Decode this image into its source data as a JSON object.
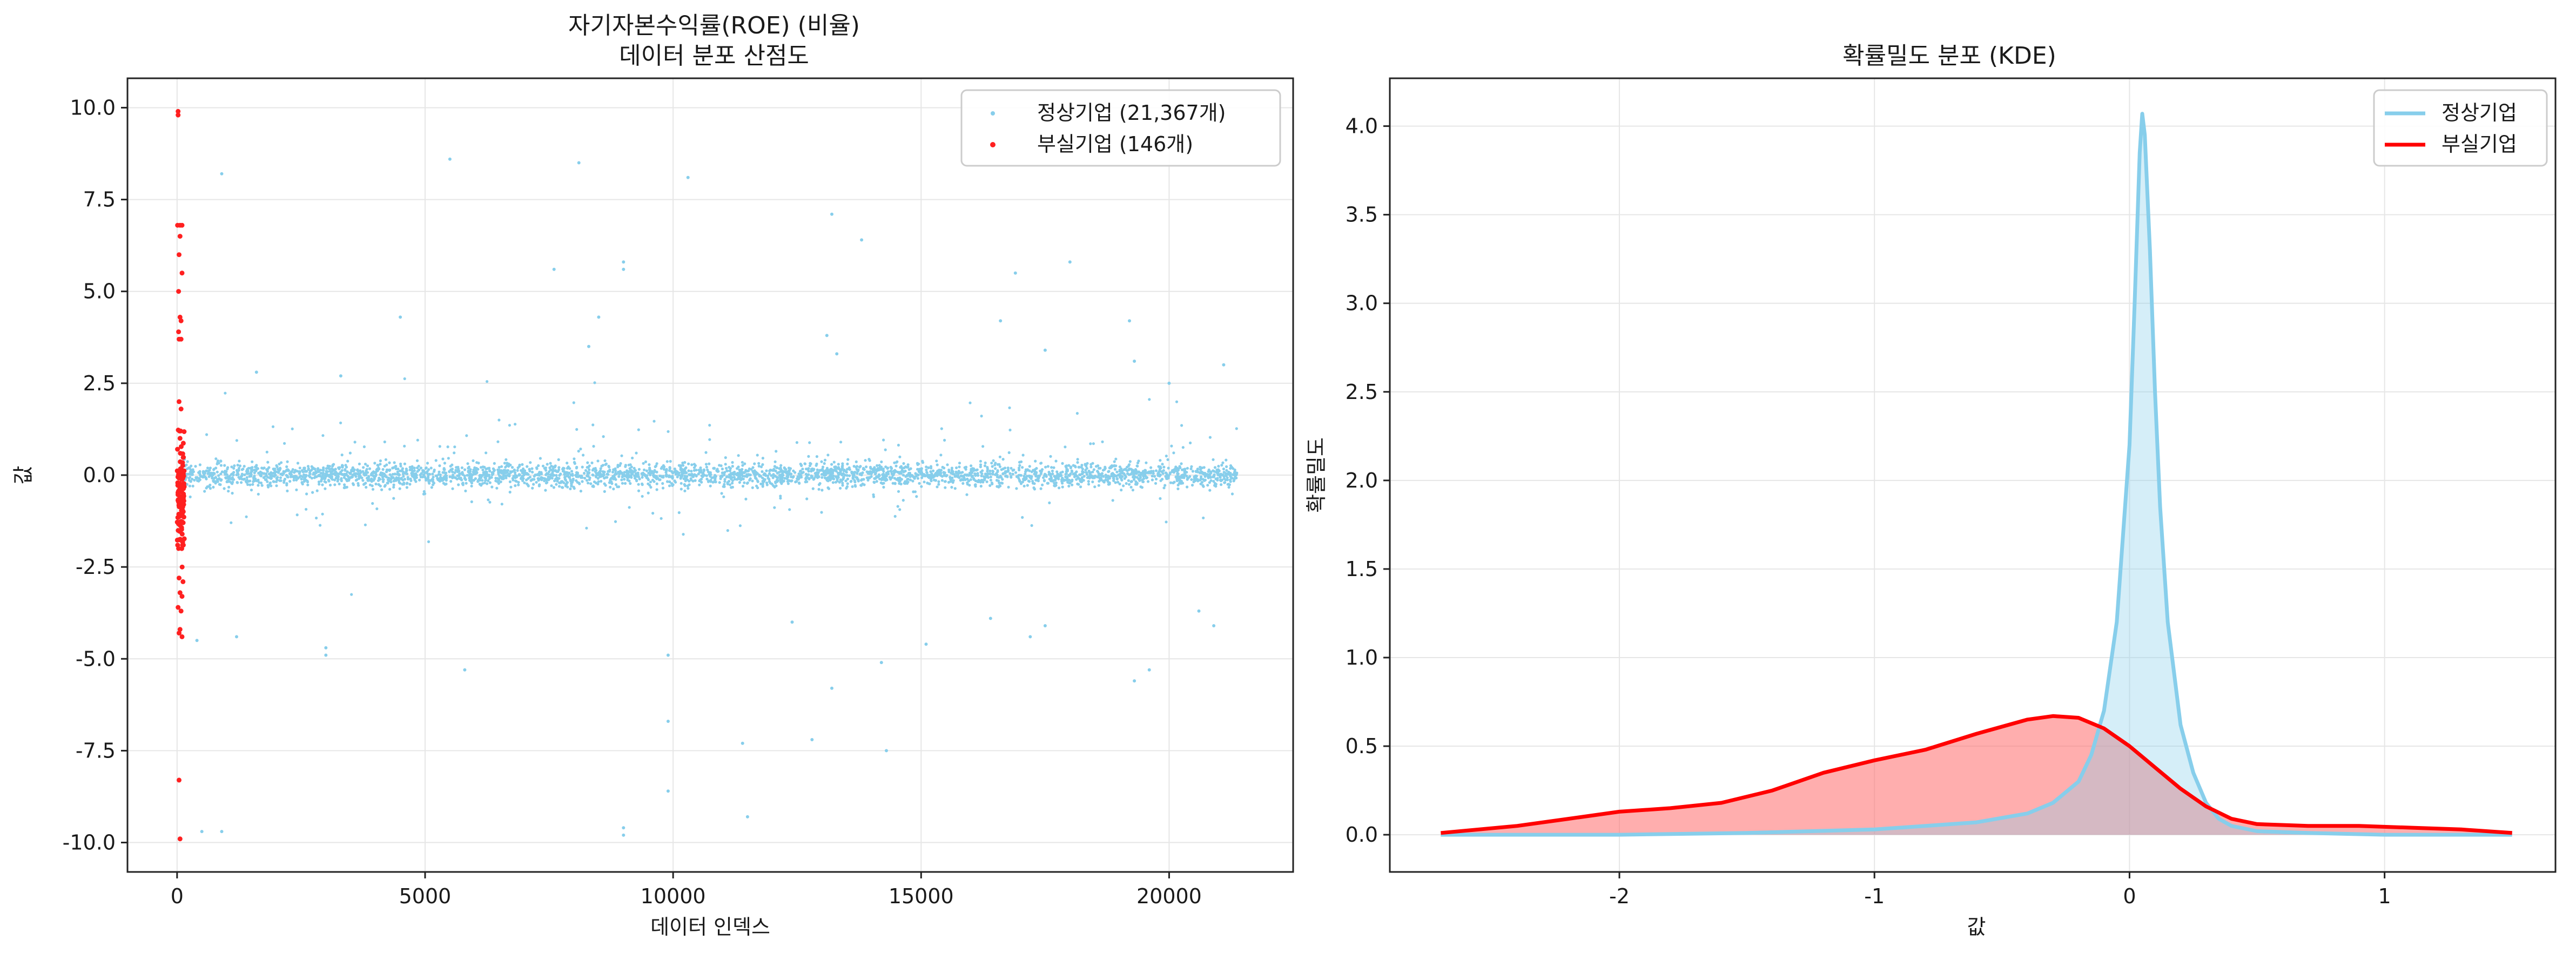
{
  "chart_data": [
    {
      "type": "scatter",
      "title": "자기자본수익률(ROE) (비율)",
      "subtitle": "데이터 분포 산점도",
      "xlabel": "데이터 인덱스",
      "ylabel": "값",
      "xlim": [
        -1000,
        22500
      ],
      "ylim": [
        -10.8,
        10.8
      ],
      "xticks": [
        0,
        5000,
        10000,
        15000,
        20000
      ],
      "xtick_labels": [
        "0",
        "5000",
        "10000",
        "15000",
        "20000"
      ],
      "yticks": [
        10.0,
        7.5,
        5.0,
        2.5,
        0.0,
        -2.5,
        -5.0,
        -7.5,
        -10.0
      ],
      "ytick_labels": [
        "10.0",
        "7.5",
        "5.0",
        "2.5",
        "0.0",
        "-2.5",
        "-5.0",
        "-7.5",
        "-10.0"
      ],
      "grid": true,
      "legend_position": "top-right",
      "series": [
        {
          "name": "정상기업 (21,367개)",
          "color": "#87CEEB",
          "count": 21367,
          "core_spread": 0.16,
          "notable_points": [
            [
              900,
              8.2
            ],
            [
              5500,
              8.6
            ],
            [
              8100,
              8.5
            ],
            [
              10300,
              8.1
            ],
            [
              13200,
              7.1
            ],
            [
              13800,
              6.4
            ],
            [
              7600,
              5.6
            ],
            [
              9000,
              5.8
            ],
            [
              9000,
              5.6
            ],
            [
              16900,
              5.5
            ],
            [
              18000,
              5.8
            ],
            [
              8500,
              4.3
            ],
            [
              4500,
              4.3
            ],
            [
              8300,
              3.5
            ],
            [
              13100,
              3.8
            ],
            [
              16600,
              4.2
            ],
            [
              17500,
              3.4
            ],
            [
              19200,
              4.2
            ],
            [
              19300,
              3.1
            ],
            [
              21100,
              3.0
            ],
            [
              13300,
              3.3
            ],
            [
              20000,
              2.5
            ],
            [
              1600,
              2.8
            ],
            [
              3300,
              2.7
            ],
            [
              1200,
              -4.4
            ],
            [
              3000,
              -4.7
            ],
            [
              3000,
              -4.9
            ],
            [
              5800,
              -5.3
            ],
            [
              9900,
              -4.9
            ],
            [
              9900,
              -6.7
            ],
            [
              9900,
              -8.6
            ],
            [
              9000,
              -9.6
            ],
            [
              9000,
              -9.8
            ],
            [
              11400,
              -7.3
            ],
            [
              11500,
              -9.3
            ],
            [
              13200,
              -5.8
            ],
            [
              14200,
              -5.1
            ],
            [
              14300,
              -7.5
            ],
            [
              12800,
              -7.2
            ],
            [
              15100,
              -4.6
            ],
            [
              17200,
              -4.4
            ],
            [
              17500,
              -4.1
            ],
            [
              19300,
              -5.6
            ],
            [
              19600,
              -5.3
            ],
            [
              20600,
              -3.7
            ],
            [
              20900,
              -4.1
            ],
            [
              500,
              -9.7
            ],
            [
              900,
              -9.7
            ],
            [
              400,
              -4.5
            ],
            [
              12400,
              -4.0
            ],
            [
              16400,
              -3.9
            ]
          ]
        },
        {
          "name": "부실기업 (146개)",
          "color": "#FF2020",
          "count": 146,
          "x_range": [
            0,
            146
          ],
          "notable_points": [
            [
              20,
              9.8
            ],
            [
              20,
              9.9
            ],
            [
              10,
              6.8
            ],
            [
              60,
              6.8
            ],
            [
              100,
              6.8
            ],
            [
              60,
              6.5
            ],
            [
              40,
              6.0
            ],
            [
              100,
              5.5
            ],
            [
              30,
              5.0
            ],
            [
              60,
              4.3
            ],
            [
              80,
              4.2
            ],
            [
              30,
              3.9
            ],
            [
              40,
              3.7
            ],
            [
              80,
              3.7
            ],
            [
              40,
              2.0
            ],
            [
              80,
              1.8
            ],
            [
              70,
              1.2
            ],
            [
              60,
              1.0
            ],
            [
              40,
              -2.8
            ],
            [
              120,
              -2.9
            ],
            [
              60,
              -3.2
            ],
            [
              100,
              -3.3
            ],
            [
              20,
              -3.6
            ],
            [
              80,
              -3.7
            ],
            [
              60,
              -4.2
            ],
            [
              40,
              -4.3
            ],
            [
              100,
              -4.4
            ],
            [
              40,
              -8.3
            ],
            [
              60,
              -9.9
            ]
          ]
        }
      ]
    },
    {
      "type": "line",
      "title": "확률밀도 분포 (KDE)",
      "xlabel": "값",
      "ylabel": "확률밀도",
      "xlim": [
        -2.9,
        1.67
      ],
      "ylim": [
        -0.21,
        4.27
      ],
      "xticks": [
        -2,
        -1,
        0,
        1
      ],
      "xtick_labels": [
        "-2",
        "-1",
        "0",
        "1"
      ],
      "yticks": [
        0.0,
        0.5,
        1.0,
        1.5,
        2.0,
        2.5,
        3.0,
        3.5,
        4.0
      ],
      "ytick_labels": [
        "0.0",
        "0.5",
        "1.0",
        "1.5",
        "2.0",
        "2.5",
        "3.0",
        "3.5",
        "4.0"
      ],
      "grid": true,
      "legend_position": "top-right",
      "series": [
        {
          "name": "정상기업",
          "color": "#87CEEB",
          "x": [
            -2.7,
            -2.0,
            -1.5,
            -1.0,
            -0.8,
            -0.6,
            -0.4,
            -0.3,
            -0.2,
            -0.15,
            -0.1,
            -0.05,
            0.0,
            0.02,
            0.04,
            0.05,
            0.06,
            0.08,
            0.1,
            0.12,
            0.15,
            0.2,
            0.25,
            0.3,
            0.35,
            0.4,
            0.5,
            0.7,
            1.0,
            1.5
          ],
          "y": [
            0.0,
            0.0,
            0.01,
            0.03,
            0.05,
            0.07,
            0.12,
            0.18,
            0.3,
            0.45,
            0.7,
            1.2,
            2.2,
            3.0,
            3.85,
            4.07,
            3.95,
            3.3,
            2.5,
            1.85,
            1.2,
            0.62,
            0.35,
            0.18,
            0.09,
            0.05,
            0.02,
            0.01,
            0.0,
            0.0
          ]
        },
        {
          "name": "부실기업",
          "color": "#FF0000",
          "x": [
            -2.7,
            -2.4,
            -2.2,
            -2.0,
            -1.8,
            -1.6,
            -1.4,
            -1.2,
            -1.0,
            -0.8,
            -0.6,
            -0.4,
            -0.3,
            -0.2,
            -0.1,
            0.0,
            0.1,
            0.2,
            0.3,
            0.4,
            0.5,
            0.7,
            0.9,
            1.1,
            1.3,
            1.5
          ],
          "y": [
            0.01,
            0.05,
            0.09,
            0.13,
            0.15,
            0.18,
            0.25,
            0.35,
            0.42,
            0.48,
            0.57,
            0.65,
            0.67,
            0.66,
            0.6,
            0.5,
            0.38,
            0.26,
            0.16,
            0.09,
            0.06,
            0.05,
            0.05,
            0.04,
            0.03,
            0.01
          ]
        }
      ]
    }
  ]
}
